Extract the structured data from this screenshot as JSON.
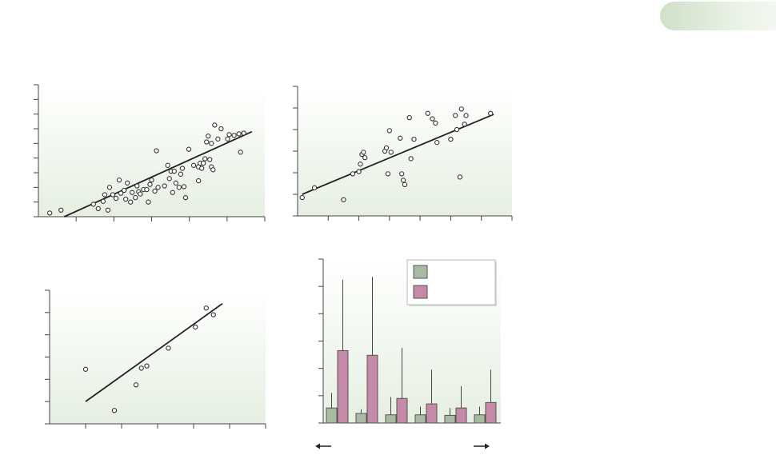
{
  "page": {
    "background": "#ffffff",
    "badge_gradient": [
      "#cfe0c8",
      "#f4f8f2"
    ]
  },
  "colors": {
    "plot_bg_top": "#ffffff",
    "plot_bg_bottom": "#e6efe2",
    "axis": "#444444",
    "line": "#222222",
    "point_stroke": "#333333",
    "point_fill": "#ffffff",
    "bar_green": "#a8bba2",
    "bar_pink": "#c48aa8",
    "bar_stroke": "#555555"
  },
  "chart_data": [
    {
      "type": "scatter",
      "title": "",
      "xlabel": "",
      "ylabel": "",
      "xlim": [
        0,
        7
      ],
      "ylim": [
        0,
        9
      ],
      "x_ticks": 6,
      "y_ticks": 9,
      "grid": false,
      "fit_line": [
        [
          0.8,
          0
        ],
        [
          6.6,
          5.8
        ]
      ],
      "points": [
        [
          0.35,
          0.25
        ],
        [
          0.7,
          0.45
        ],
        [
          1.7,
          0.85
        ],
        [
          1.85,
          0.55
        ],
        [
          2.0,
          1.05
        ],
        [
          2.05,
          1.5
        ],
        [
          2.15,
          0.45
        ],
        [
          2.2,
          2.0
        ],
        [
          2.3,
          1.5
        ],
        [
          2.4,
          1.25
        ],
        [
          2.5,
          2.5
        ],
        [
          2.55,
          1.6
        ],
        [
          2.65,
          1.8
        ],
        [
          2.7,
          1.2
        ],
        [
          2.75,
          2.3
        ],
        [
          2.85,
          1.0
        ],
        [
          2.9,
          1.65
        ],
        [
          3.0,
          1.3
        ],
        [
          3.05,
          2.1
        ],
        [
          3.1,
          1.7
        ],
        [
          3.15,
          1.55
        ],
        [
          3.25,
          1.85
        ],
        [
          3.35,
          1.85
        ],
        [
          3.4,
          1.0
        ],
        [
          3.45,
          2.2
        ],
        [
          3.5,
          2.5
        ],
        [
          3.6,
          1.75
        ],
        [
          3.65,
          4.5
        ],
        [
          3.7,
          2.0
        ],
        [
          3.9,
          2.1
        ],
        [
          4.0,
          3.5
        ],
        [
          4.05,
          2.6
        ],
        [
          4.1,
          3.1
        ],
        [
          4.15,
          1.65
        ],
        [
          4.2,
          3.1
        ],
        [
          4.25,
          2.3
        ],
        [
          4.35,
          2.0
        ],
        [
          4.4,
          2.9
        ],
        [
          4.45,
          3.3
        ],
        [
          4.5,
          2.05
        ],
        [
          4.55,
          1.3
        ],
        [
          4.65,
          4.6
        ],
        [
          4.8,
          3.5
        ],
        [
          4.95,
          3.4
        ],
        [
          4.95,
          2.45
        ],
        [
          5.0,
          3.65
        ],
        [
          5.05,
          3.3
        ],
        [
          5.1,
          3.65
        ],
        [
          5.15,
          3.95
        ],
        [
          5.2,
          5.1
        ],
        [
          5.25,
          5.5
        ],
        [
          5.3,
          3.9
        ],
        [
          5.35,
          5.0
        ],
        [
          5.35,
          3.4
        ],
        [
          5.4,
          3.2
        ],
        [
          5.45,
          6.25
        ],
        [
          5.55,
          5.3
        ],
        [
          5.65,
          6.0
        ],
        [
          5.85,
          5.3
        ],
        [
          5.9,
          5.6
        ],
        [
          6.05,
          5.55
        ],
        [
          6.2,
          5.65
        ],
        [
          6.25,
          4.4
        ],
        [
          6.35,
          5.7
        ]
      ]
    },
    {
      "type": "scatter",
      "title": "",
      "xlabel": "",
      "ylabel": "",
      "xlim": [
        0,
        7
      ],
      "ylim": [
        0,
        6
      ],
      "x_ticks": 7,
      "y_ticks": 6,
      "grid": false,
      "fit_line": [
        [
          0.15,
          1.0
        ],
        [
          6.4,
          4.7
        ]
      ],
      "points": [
        [
          0.15,
          0.85
        ],
        [
          0.55,
          1.3
        ],
        [
          1.5,
          0.75
        ],
        [
          1.8,
          1.95
        ],
        [
          2.0,
          2.05
        ],
        [
          2.05,
          2.4
        ],
        [
          2.1,
          2.85
        ],
        [
          2.15,
          2.95
        ],
        [
          2.2,
          2.7
        ],
        [
          2.85,
          3.0
        ],
        [
          2.9,
          3.15
        ],
        [
          2.95,
          1.95
        ],
        [
          3.0,
          3.95
        ],
        [
          3.05,
          2.95
        ],
        [
          3.35,
          3.6
        ],
        [
          3.4,
          1.95
        ],
        [
          3.45,
          1.65
        ],
        [
          3.5,
          1.45
        ],
        [
          3.65,
          4.55
        ],
        [
          3.7,
          2.65
        ],
        [
          3.8,
          3.55
        ],
        [
          4.25,
          4.75
        ],
        [
          4.4,
          4.5
        ],
        [
          4.5,
          4.3
        ],
        [
          4.55,
          3.4
        ],
        [
          5.0,
          3.55
        ],
        [
          5.15,
          4.65
        ],
        [
          5.2,
          4.0
        ],
        [
          5.3,
          1.8
        ],
        [
          5.35,
          4.95
        ],
        [
          5.45,
          4.25
        ],
        [
          5.5,
          4.65
        ],
        [
          6.3,
          4.75
        ]
      ]
    },
    {
      "type": "scatter",
      "title": "",
      "xlabel": "",
      "ylabel": "",
      "xlim": [
        0,
        6
      ],
      "ylim": [
        0,
        6
      ],
      "x_ticks": 6,
      "y_ticks": 6,
      "grid": false,
      "fit_line": [
        [
          1.0,
          1.0
        ],
        [
          4.8,
          5.4
        ]
      ],
      "points": [
        [
          1.0,
          2.45
        ],
        [
          1.8,
          0.6
        ],
        [
          2.4,
          1.75
        ],
        [
          2.55,
          2.5
        ],
        [
          2.7,
          2.6
        ],
        [
          3.3,
          3.4
        ],
        [
          4.05,
          4.35
        ],
        [
          4.35,
          5.2
        ],
        [
          4.55,
          4.9
        ]
      ]
    },
    {
      "type": "bar",
      "title": "",
      "xlabel": "",
      "ylabel": "",
      "ylim": [
        0,
        6
      ],
      "y_ticks": 6,
      "grid": false,
      "legend_position": "top-right",
      "categories": [
        "",
        "",
        "",
        "",
        "",
        ""
      ],
      "series": [
        {
          "values": [
            0.55,
            0.35,
            0.3,
            0.3,
            0.28,
            0.3
          ],
          "error_upper": [
            1.1,
            0.5,
            0.95,
            0.6,
            0.55,
            0.6
          ],
          "color": "#a8bba2"
        },
        {
          "values": [
            2.65,
            2.48,
            0.9,
            0.7,
            0.55,
            0.75
          ],
          "error_upper": [
            5.25,
            5.35,
            2.75,
            1.95,
            1.35,
            1.95
          ],
          "color": "#c48aa8"
        }
      ]
    }
  ]
}
